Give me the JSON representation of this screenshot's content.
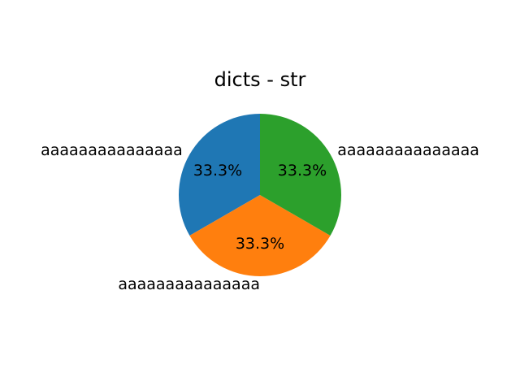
{
  "chart_data": {
    "type": "pie",
    "title": "dicts - str",
    "labels": [
      "aaaaaaaaaaaaaaa",
      "aaaaaaaaaaaaaaa",
      "aaaaaaaaaaaaaaa"
    ],
    "values": [
      33.3,
      33.3,
      33.3
    ],
    "percent_labels": [
      "33.3%",
      "33.3%",
      "33.3%"
    ],
    "colors": [
      "#1f77b4",
      "#ff7f0e",
      "#2ca02c"
    ],
    "start_angle_deg": 90,
    "direction": "counterclockwise"
  }
}
